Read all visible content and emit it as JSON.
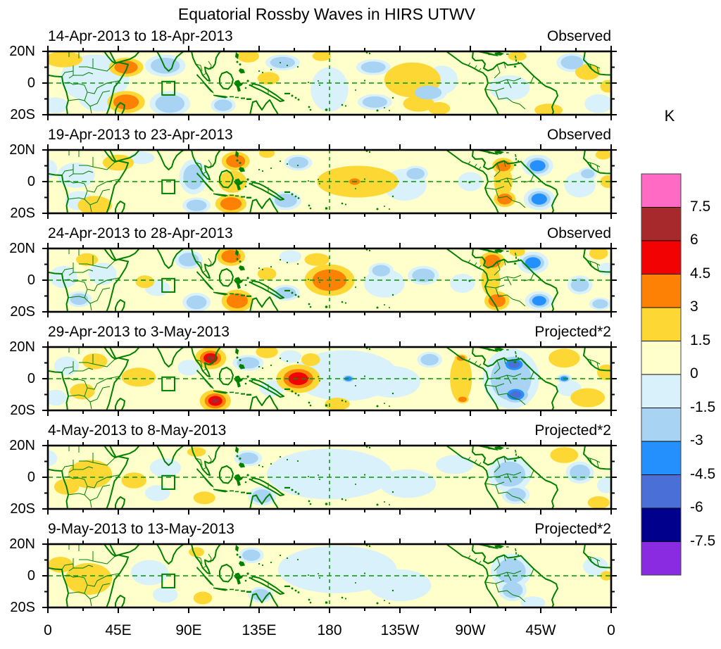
{
  "page_title": "Equatorial Rossby Waves in HIRS UTWV",
  "chart_data": {
    "type": "heatmap",
    "subtype": "filled-contour-longitude-latitude-map-series",
    "title": "Equatorial Rossby Waves in HIRS UTWV",
    "units": "K",
    "x_ticks": [
      "0",
      "45E",
      "90E",
      "135E",
      "180",
      "135W",
      "90W",
      "45W",
      "0"
    ],
    "y_ticks": [
      "20N",
      "0",
      "20S"
    ],
    "lon_range_deg_east": [
      0,
      360
    ],
    "lat_range_deg": [
      -20,
      20
    ],
    "contour_interval_K": 1.5,
    "grid": {
      "equator_dashed_line": true,
      "dateline_dashed_line": true
    },
    "reference_box": {
      "lon_min_E": 73,
      "lon_max_E": 81,
      "lat_min": -7.5,
      "lat_max": 1
    },
    "colorbar": {
      "label": "K",
      "tick_labels": [
        "7.5",
        "6",
        "4.5",
        "3",
        "1.5",
        "0",
        "-1.5",
        "-3",
        "-4.5",
        "-6",
        "-7.5"
      ],
      "colors_top_to_bottom": [
        "#ff6bc4",
        "#a8292b",
        "#f20202",
        "#fc8105",
        "#fdd835",
        "#ffffcc",
        "#d9f1fa",
        "#a9d3f2",
        "#2390fe",
        "#4a6fd6",
        "#00008c",
        "#8a2be2"
      ]
    },
    "anomaly_format": "[lon_deg_east, lat_deg, rx_deg, ry_deg, depth] depth>0 warm bands crossed (1=1.5K,2=3K,3=4.5K,4=6K), depth<0 cold bands crossed",
    "panels": [
      {
        "title": "14-Apr-2013 to 18-Apr-2013",
        "tag": "Observed",
        "anomalies": [
          [
            30,
            3,
            22,
            15,
            -1
          ],
          [
            33,
            -8,
            14,
            10,
            -1
          ],
          [
            75,
            11,
            13,
            7,
            -2
          ],
          [
            78,
            -13,
            13,
            8,
            -2
          ],
          [
            112,
            -14,
            8,
            5,
            -2
          ],
          [
            150,
            13,
            11,
            5,
            -2
          ],
          [
            180,
            -4,
            12,
            14,
            -1
          ],
          [
            208,
            10,
            11,
            5,
            -2
          ],
          [
            209,
            -12,
            11,
            5,
            -2
          ],
          [
            252,
            2,
            10,
            9,
            -1
          ],
          [
            243,
            -6,
            12,
            6,
            -2
          ],
          [
            295,
            -3,
            13,
            8,
            -1
          ],
          [
            335,
            13,
            10,
            6,
            -2
          ],
          [
            352,
            -13,
            9,
            6,
            -1
          ],
          [
            5,
            -14,
            8,
            5,
            -1
          ],
          [
            50,
            10,
            11,
            6,
            2
          ],
          [
            50,
            -12,
            12,
            7,
            2
          ],
          [
            10,
            15,
            12,
            5,
            1
          ],
          [
            128,
            17,
            7,
            4,
            1
          ],
          [
            141,
            3,
            7,
            4,
            1
          ],
          [
            175,
            17,
            6,
            3,
            1
          ],
          [
            233,
            2,
            18,
            11,
            1
          ],
          [
            237,
            -13,
            10,
            5,
            1
          ],
          [
            250,
            -16,
            7,
            4,
            1
          ],
          [
            320,
            -17,
            9,
            4,
            1
          ],
          [
            345,
            7,
            8,
            5,
            1
          ],
          [
            300,
            17,
            6,
            3,
            1
          ],
          [
            358,
            -2,
            5,
            4,
            1
          ]
        ]
      },
      {
        "title": "19-Apr-2013 to 23-Apr-2013",
        "tag": "Observed",
        "anomalies": [
          [
            18,
            4,
            12,
            8,
            -1
          ],
          [
            20,
            -12,
            9,
            6,
            -1
          ],
          [
            60,
            15,
            8,
            4,
            -1
          ],
          [
            93,
            3,
            9,
            11,
            -2
          ],
          [
            95,
            -15,
            9,
            5,
            -2
          ],
          [
            152,
            -12,
            10,
            6,
            -2
          ],
          [
            160,
            12,
            9,
            5,
            -2
          ],
          [
            228,
            -2,
            14,
            10,
            -1
          ],
          [
            235,
            5,
            8,
            5,
            -2
          ],
          [
            313,
            10,
            10,
            7,
            -3
          ],
          [
            314,
            -11,
            10,
            7,
            -3
          ],
          [
            340,
            -2,
            10,
            8,
            -1
          ],
          [
            345,
            5,
            6,
            4,
            -2
          ],
          [
            0,
            8,
            6,
            6,
            -1
          ],
          [
            270,
            0,
            8,
            6,
            -1
          ],
          [
            45,
            12,
            10,
            5,
            1
          ],
          [
            30,
            -15,
            11,
            6,
            1
          ],
          [
            120,
            13,
            9,
            6,
            2
          ],
          [
            117,
            -14,
            10,
            6,
            2
          ],
          [
            118,
            0,
            9,
            7,
            1
          ],
          [
            198,
            0,
            26,
            10,
            1
          ],
          [
            196,
            0,
            5,
            3,
            2
          ],
          [
            291,
            10,
            7,
            5,
            2
          ],
          [
            292,
            -11,
            7,
            5,
            2
          ],
          [
            291,
            0,
            6,
            9,
            1
          ],
          [
            355,
            17,
            5,
            3,
            1
          ],
          [
            358,
            0,
            5,
            4,
            1
          ],
          [
            140,
            18,
            5,
            3,
            1
          ]
        ]
      },
      {
        "title": "24-Apr-2013 to 28-Apr-2013",
        "tag": "Observed",
        "anomalies": [
          [
            10,
            2,
            9,
            7,
            -1
          ],
          [
            20,
            -12,
            8,
            5,
            -2
          ],
          [
            35,
            4,
            9,
            7,
            -1
          ],
          [
            90,
            13,
            9,
            6,
            -2
          ],
          [
            95,
            -14,
            9,
            6,
            -2
          ],
          [
            70,
            -5,
            8,
            5,
            -1
          ],
          [
            152,
            -8,
            9,
            5,
            -2
          ],
          [
            155,
            15,
            7,
            4,
            -1
          ],
          [
            215,
            -2,
            13,
            9,
            -1
          ],
          [
            213,
            6,
            8,
            5,
            -2
          ],
          [
            240,
            3,
            10,
            6,
            -2
          ],
          [
            265,
            -2,
            8,
            6,
            -1
          ],
          [
            310,
            11,
            10,
            7,
            -3
          ],
          [
            314,
            -13,
            9,
            6,
            -3
          ],
          [
            340,
            -3,
            8,
            6,
            -2
          ],
          [
            353,
            -15,
            7,
            4,
            -2
          ],
          [
            357,
            7,
            5,
            4,
            -1
          ],
          [
            25,
            13,
            7,
            4,
            1
          ],
          [
            62,
            -1,
            6,
            4,
            1
          ],
          [
            117,
            15,
            9,
            6,
            2
          ],
          [
            121,
            -13,
            10,
            7,
            2
          ],
          [
            140,
            4,
            6,
            4,
            1
          ],
          [
            180,
            0,
            16,
            10,
            2
          ],
          [
            172,
            13,
            8,
            4,
            1
          ],
          [
            284,
            12,
            8,
            6,
            2
          ],
          [
            287,
            -13,
            8,
            6,
            2
          ],
          [
            283,
            0,
            6,
            10,
            1
          ],
          [
            352,
            17,
            6,
            4,
            1
          ],
          [
            300,
            18,
            5,
            3,
            1
          ]
        ]
      },
      {
        "title": "29-Apr-2013 to 3-May-2013",
        "tag": "Projected*2",
        "anomalies": [
          [
            90,
            7,
            7,
            5,
            -1
          ],
          [
            128,
            10,
            10,
            5,
            -2
          ],
          [
            143,
            -6,
            8,
            5,
            -1
          ],
          [
            190,
            2,
            34,
            16,
            -1
          ],
          [
            192,
            0,
            5,
            3,
            -3
          ],
          [
            220,
            -2,
            18,
            10,
            -1
          ],
          [
            244,
            12,
            8,
            5,
            -2
          ],
          [
            296,
            0,
            18,
            19,
            -2
          ],
          [
            298,
            9,
            11,
            7,
            -4
          ],
          [
            299,
            -10,
            11,
            7,
            -4
          ],
          [
            330,
            0,
            5,
            3,
            -3
          ],
          [
            333,
            -6,
            8,
            5,
            -1
          ],
          [
            5,
            -12,
            7,
            5,
            -1
          ],
          [
            12,
            8,
            8,
            6,
            -1
          ],
          [
            155,
            14,
            7,
            4,
            -1
          ],
          [
            104,
            13,
            10,
            7,
            4
          ],
          [
            107,
            -14,
            10,
            7,
            4
          ],
          [
            160,
            0,
            14,
            9,
            3
          ],
          [
            58,
            1,
            11,
            6,
            1
          ],
          [
            30,
            11,
            8,
            5,
            1
          ],
          [
            22,
            -8,
            8,
            5,
            1
          ],
          [
            140,
            17,
            7,
            4,
            1
          ],
          [
            168,
            12,
            6,
            4,
            1
          ],
          [
            264,
            0,
            7,
            15,
            1
          ],
          [
            264,
            13,
            4,
            2.5,
            2
          ],
          [
            265,
            -13,
            4,
            2.5,
            2
          ],
          [
            330,
            13,
            10,
            6,
            1
          ],
          [
            345,
            -12,
            11,
            6,
            1
          ],
          [
            357,
            4,
            6,
            5,
            1
          ],
          [
            185,
            -16,
            8,
            4,
            1
          ]
        ]
      },
      {
        "title": "4-May-2013 to 8-May-2013",
        "tag": "Projected*2",
        "anomalies": [
          [
            75,
            6,
            10,
            6,
            -1
          ],
          [
            70,
            -10,
            8,
            5,
            -1
          ],
          [
            128,
            12,
            9,
            5,
            -2
          ],
          [
            137,
            -12,
            9,
            6,
            -2
          ],
          [
            180,
            2,
            40,
            16,
            -1
          ],
          [
            230,
            -4,
            18,
            9,
            -1
          ],
          [
            260,
            8,
            12,
            6,
            -1
          ],
          [
            295,
            2,
            14,
            11,
            -2
          ],
          [
            299,
            -11,
            9,
            6,
            -2
          ],
          [
            340,
            3,
            9,
            7,
            -2
          ],
          [
            0,
            12,
            6,
            5,
            -1
          ],
          [
            357,
            -5,
            6,
            5,
            -1
          ],
          [
            27,
            2,
            14,
            9,
            1
          ],
          [
            12,
            -6,
            8,
            5,
            1
          ],
          [
            55,
            -2,
            8,
            5,
            1
          ],
          [
            95,
            16,
            6,
            3,
            1
          ],
          [
            100,
            -13,
            7,
            4,
            1
          ],
          [
            330,
            14,
            9,
            5,
            1
          ],
          [
            352,
            -16,
            7,
            4,
            1
          ]
        ]
      },
      {
        "title": "9-May-2013 to 13-May-2013",
        "tag": "Projected*2",
        "anomalies": [
          [
            65,
            2,
            12,
            8,
            -1
          ],
          [
            75,
            -12,
            8,
            5,
            -1
          ],
          [
            130,
            13,
            8,
            5,
            -2
          ],
          [
            136,
            -12,
            8,
            5,
            -2
          ],
          [
            185,
            4,
            38,
            15,
            -1
          ],
          [
            225,
            -6,
            20,
            10,
            -1
          ],
          [
            296,
            3,
            13,
            11,
            -2
          ],
          [
            297,
            -9,
            9,
            7,
            -2
          ],
          [
            350,
            6,
            8,
            6,
            -1
          ],
          [
            310,
            -17,
            8,
            4,
            -1
          ],
          [
            26,
            -2,
            15,
            10,
            1
          ],
          [
            8,
            7,
            8,
            5,
            1
          ],
          [
            95,
            15,
            5,
            3,
            1
          ],
          [
            99,
            -14,
            6,
            4,
            1
          ],
          [
            357,
            0,
            4,
            3,
            1
          ]
        ]
      }
    ]
  },
  "colors": {
    "background": "#ffffff",
    "base_fill": "#ffffcc",
    "coastline_green": "#008000",
    "dashed_grid_green": "#0a8f0a",
    "axis_black": "#000000",
    "warm_bands_out_to_in": [
      "#fdd835",
      "#fc8105",
      "#f20202",
      "#a8292b",
      "#ff6bc4"
    ],
    "cold_bands_out_to_in": [
      "#d9f1fa",
      "#a9d3f2",
      "#2390fe",
      "#4a6fd6",
      "#00008c",
      "#8a2be2"
    ]
  }
}
